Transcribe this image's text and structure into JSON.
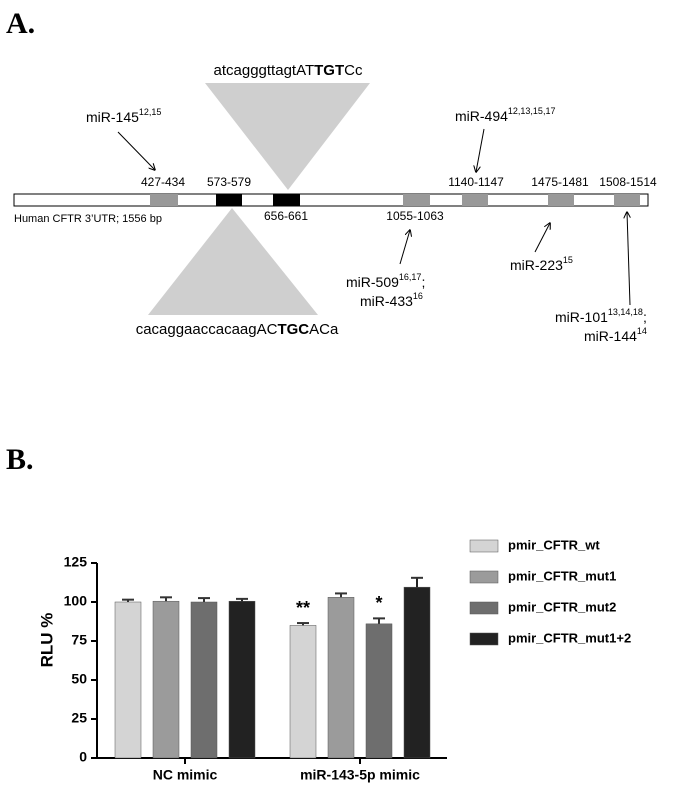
{
  "panel_labels": [
    "A.",
    "B."
  ],
  "diagram": {
    "utr_label": "Human CFTR 3’UTR; 1556 bp",
    "top_sequence": [
      "atcagggttagtAT",
      "TGT",
      "Cc"
    ],
    "bottom_sequence": [
      "cacaggaaccacaagAC",
      "TGC",
      "ACa"
    ],
    "sites": [
      "427-434",
      "573-579",
      "656-661",
      "1055-1063",
      "1140-1147",
      "1475-1481",
      "1508-1514"
    ],
    "mirnas": [
      {
        "name": "miR-145",
        "refs": "12,15"
      },
      {
        "name": "miR-494",
        "refs": "12,13,15,17"
      },
      {
        "name": "miR-509",
        "refs": "16,17",
        "suffix": ";"
      },
      {
        "name": "miR-433",
        "refs": "16"
      },
      {
        "name": "miR-223",
        "refs": "15"
      },
      {
        "name": "miR-101",
        "refs": "13,14,18",
        "suffix": ";"
      },
      {
        "name": "miR-144",
        "refs": "14"
      }
    ]
  },
  "chart_data": {
    "type": "bar",
    "y_label": "RLU %",
    "categories": [
      "NC mimic",
      "miR-143-5p mimic"
    ],
    "series": [
      {
        "name": "pmir_CFTR_wt",
        "color": "#d4d4d4",
        "values": [
          100,
          85
        ],
        "errors": [
          1.5,
          1.5
        ],
        "value_annotations": [
          null,
          "**"
        ]
      },
      {
        "name": "pmir_CFTR_mut1",
        "color": "#9b9b9b",
        "values": [
          100.5,
          103
        ],
        "errors": [
          2.5,
          2.5
        ]
      },
      {
        "name": "pmir_CFTR_mut2",
        "color": "#6e6e6e",
        "values": [
          100,
          86
        ],
        "errors": [
          2.5,
          3.5
        ],
        "value_annotations": [
          null,
          "*"
        ]
      },
      {
        "name": "pmir_CFTR_mut1+2",
        "color": "#222222",
        "values": [
          100.5,
          109.5
        ],
        "errors": [
          1.5,
          6
        ]
      }
    ],
    "ylim": [
      0,
      125
    ],
    "yticks": [
      0,
      25,
      50,
      75,
      100,
      125
    ],
    "grid": false
  }
}
